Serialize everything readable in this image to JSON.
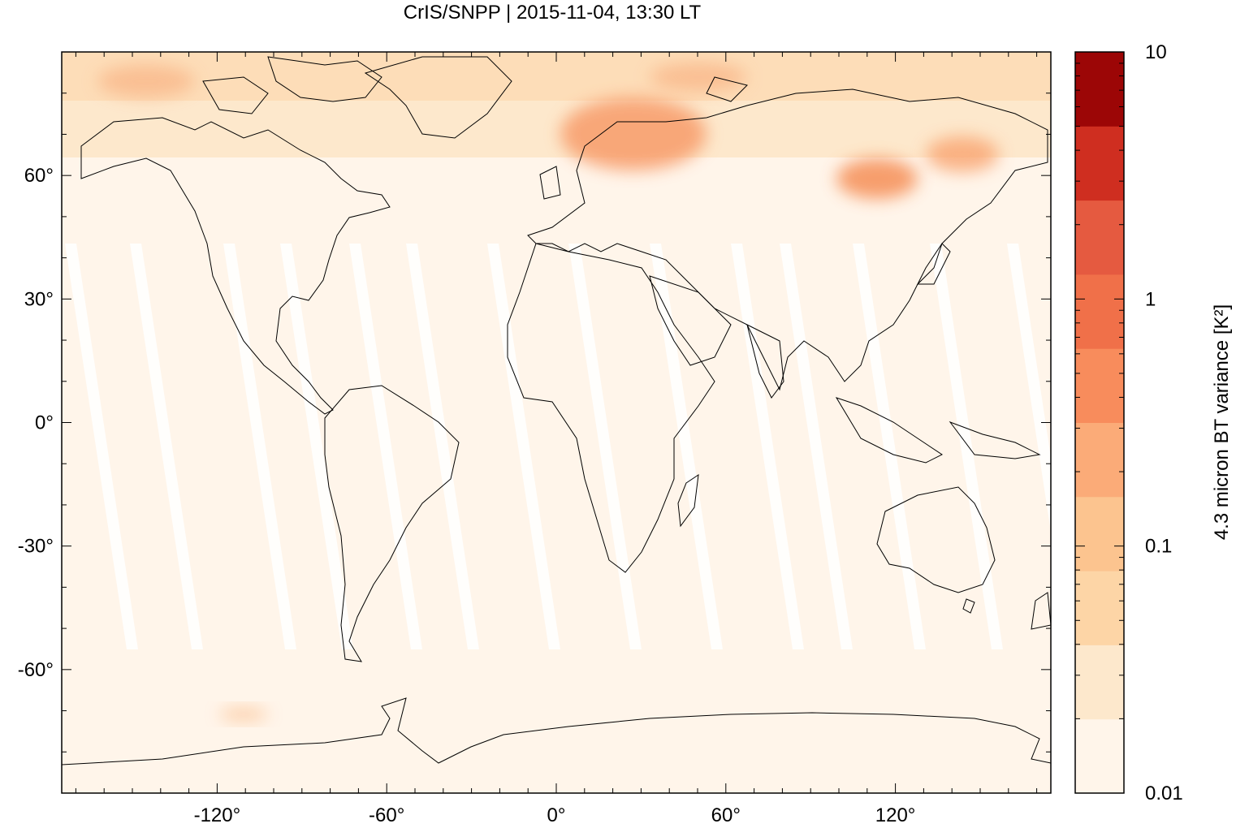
{
  "title": "CrIS/SNPP | 2015-11-04, 13:30 LT",
  "map": {
    "lon_range": [
      -175,
      175
    ],
    "lat_range": [
      -90,
      90
    ],
    "x_ticks": [
      {
        "value": -120,
        "label": "-120°"
      },
      {
        "value": -60,
        "label": "-60°"
      },
      {
        "value": 0,
        "label": "0°"
      },
      {
        "value": 60,
        "label": "60°"
      },
      {
        "value": 120,
        "label": "120°"
      }
    ],
    "y_ticks": [
      {
        "value": 60,
        "label": "60°"
      },
      {
        "value": 30,
        "label": "30°"
      },
      {
        "value": 0,
        "label": "0°"
      },
      {
        "value": -30,
        "label": "-30°"
      },
      {
        "value": -60,
        "label": "-60°"
      }
    ],
    "background_color": "#fff5ea",
    "gap_color": "#ffffff",
    "coast_color": "#000000"
  },
  "colorbar": {
    "label": "4.3 micron BT variance [K²]",
    "scale": "log",
    "range": [
      0.01,
      10
    ],
    "tick_labels": [
      {
        "value": 10,
        "label": "10"
      },
      {
        "value": 1,
        "label": "1"
      },
      {
        "value": 0.1,
        "label": "0.1"
      },
      {
        "value": 0.01,
        "label": "0.01"
      }
    ],
    "colors": [
      "#fff5ea",
      "#fde8cc",
      "#fdd5a6",
      "#fcc48f",
      "#fbab78",
      "#f88c5c",
      "#f07049",
      "#e55a40",
      "#cf2e20",
      "#9c0606"
    ]
  }
}
